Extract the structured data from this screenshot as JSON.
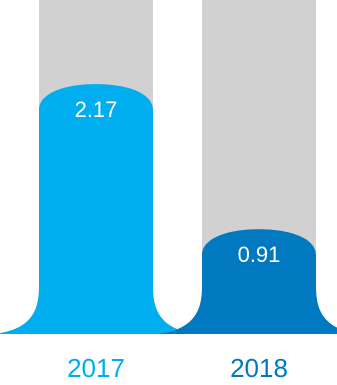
{
  "chart_data": {
    "type": "bar",
    "categories": [
      "2017",
      "2018"
    ],
    "values": [
      2.17,
      0.91
    ],
    "value_labels": [
      "2.17",
      "0.91"
    ],
    "ylim": [
      0,
      2.9
    ],
    "colors": [
      "#00aeef",
      "#0079c1"
    ],
    "track_color": "#d1d1d1",
    "label_colors": [
      "#00aeef",
      "#0079c1"
    ]
  }
}
